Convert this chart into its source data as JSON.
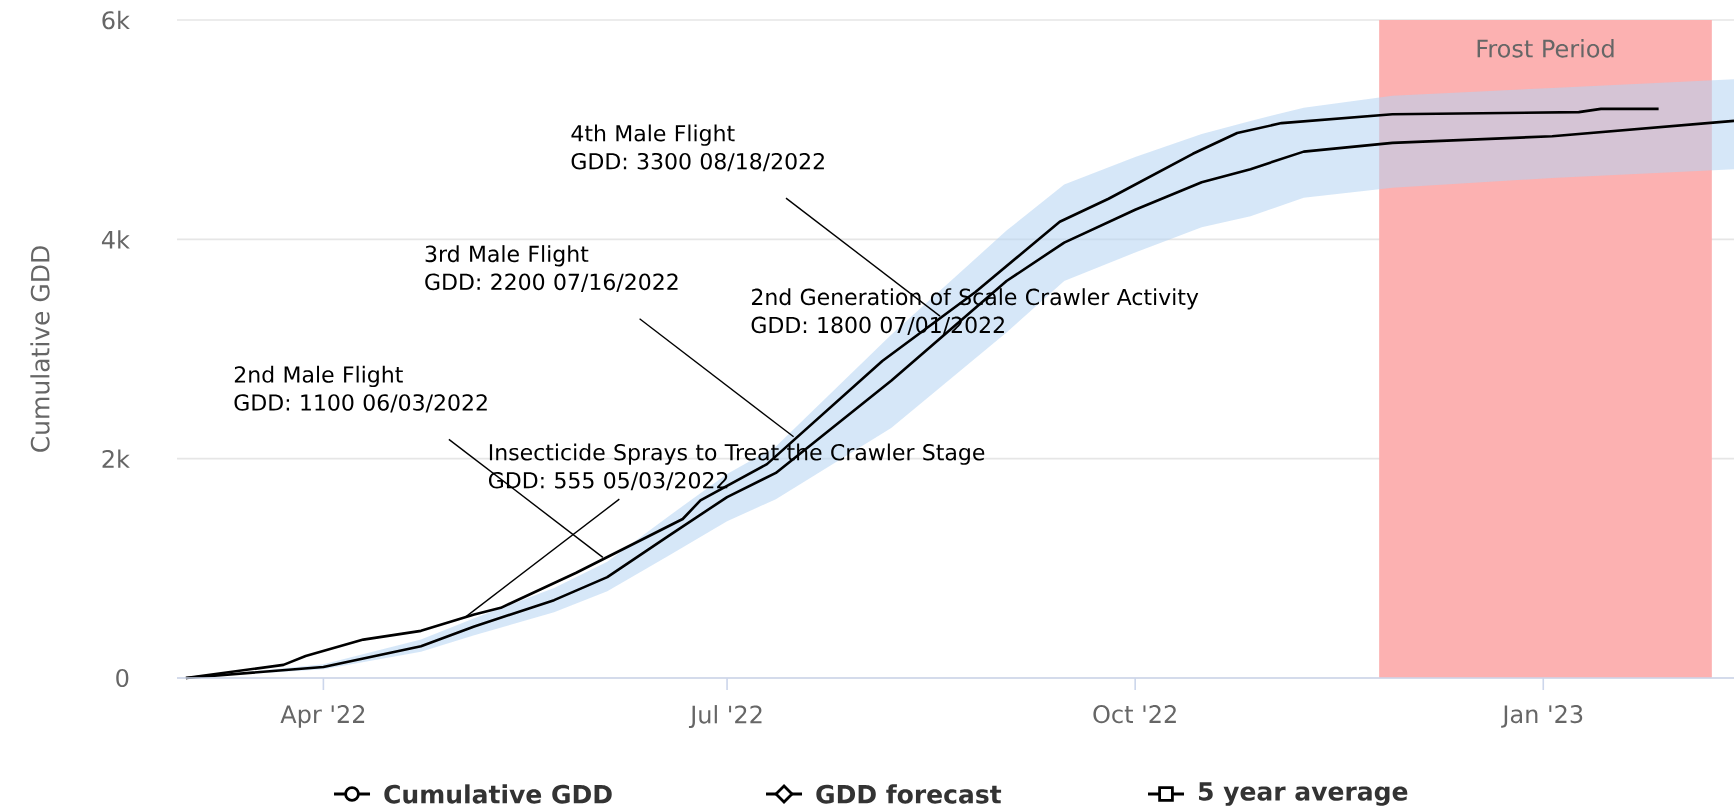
{
  "chart_data": {
    "type": "line",
    "ylabel": "Cumulative GDD",
    "xlim": [
      "2022-02-27",
      "2023-02-13"
    ],
    "xticks": [
      {
        "value": "2022-04-01",
        "label": "Apr '22"
      },
      {
        "value": "2022-07-01",
        "label": "Jul '22"
      },
      {
        "value": "2022-10-01",
        "label": "Oct '22"
      },
      {
        "value": "2023-01-01",
        "label": "Jan '23"
      }
    ],
    "ylim": [
      0,
      6000
    ],
    "yticks": [
      0,
      {
        "value": 2000,
        "label": "2k"
      },
      {
        "value": 4000,
        "label": "4k"
      },
      {
        "value": 6000,
        "label": "6k"
      }
    ],
    "grid": "y",
    "legend": "bottom",
    "series": [
      {
        "name": "Cumulative GDD",
        "color": "#000000",
        "x": [
          "2022-03-01",
          "2022-03-23",
          "2022-03-28",
          "2022-04-10",
          "2022-04-23",
          "2022-05-05",
          "2022-05-11",
          "2022-05-28",
          "2022-06-21",
          "2022-06-25",
          "2022-07-10",
          "2022-08-05",
          "2022-08-26",
          "2022-09-14",
          "2022-09-25",
          "2022-10-14",
          "2022-10-24",
          "2022-11-03",
          "2022-11-28",
          "2023-01-09",
          "2023-01-14",
          "2023-01-27"
        ],
        "values": [
          0,
          120,
          200,
          350,
          430,
          580,
          640,
          960,
          1450,
          1620,
          1950,
          2890,
          3520,
          4160,
          4370,
          4780,
          4970,
          5060,
          5140,
          5160,
          5190,
          5190
        ]
      },
      {
        "name": "GDD forecast",
        "color": "#000000"
      },
      {
        "name": "5 year average",
        "color": "#000000",
        "x": [
          "2022-03-01",
          "2022-04-01",
          "2022-04-23",
          "2022-05-05",
          "2022-05-23",
          "2022-06-04",
          "2022-06-18",
          "2022-07-01",
          "2022-07-12",
          "2022-08-07",
          "2022-09-02",
          "2022-09-15",
          "2022-10-01",
          "2022-10-16",
          "2022-10-27",
          "2022-11-08",
          "2022-11-28",
          "2023-01-03",
          "2023-02-13"
        ],
        "values": [
          0,
          100,
          290,
          470,
          710,
          920,
          1300,
          1650,
          1870,
          2710,
          3620,
          3970,
          4270,
          4520,
          4640,
          4800,
          4880,
          4940,
          5080
        ],
        "lower": [
          0,
          80,
          240,
          390,
          600,
          790,
          1120,
          1430,
          1630,
          2280,
          3150,
          3620,
          3880,
          4110,
          4210,
          4380,
          4470,
          4560,
          4640
        ],
        "upper": [
          0,
          125,
          350,
          545,
          820,
          1060,
          1480,
          1860,
          2110,
          3130,
          4080,
          4500,
          4750,
          4960,
          5080,
          5200,
          5310,
          5380,
          5460
        ]
      }
    ],
    "bands": [
      {
        "axis": "x",
        "from": "2022-11-25",
        "to": "2023-02-08",
        "label": "Frost Period",
        "color": "#fcb1b1"
      }
    ],
    "annotations": [
      {
        "text": "4th Male Flight\nGDD: 3300 08/18/2022",
        "x": "2022-08-18",
        "y": 3300
      },
      {
        "text": "3rd Male Flight\nGDD: 2200 07/16/2022",
        "x": "2022-07-16",
        "y": 2200
      },
      "2nd Generation of Scale Crawler Activity\nGDD: 1800 07/01/2022",
      {
        "text": "2nd Male Flight\nGDD: 1100 06/03/2022",
        "x": "2022-06-03",
        "y": 1100
      },
      {
        "text": "Insecticide Sprays to Treat the Crawler Stage\nGDD: 555 05/03/2022",
        "x": "2022-05-03",
        "y": 555
      }
    ]
  }
}
